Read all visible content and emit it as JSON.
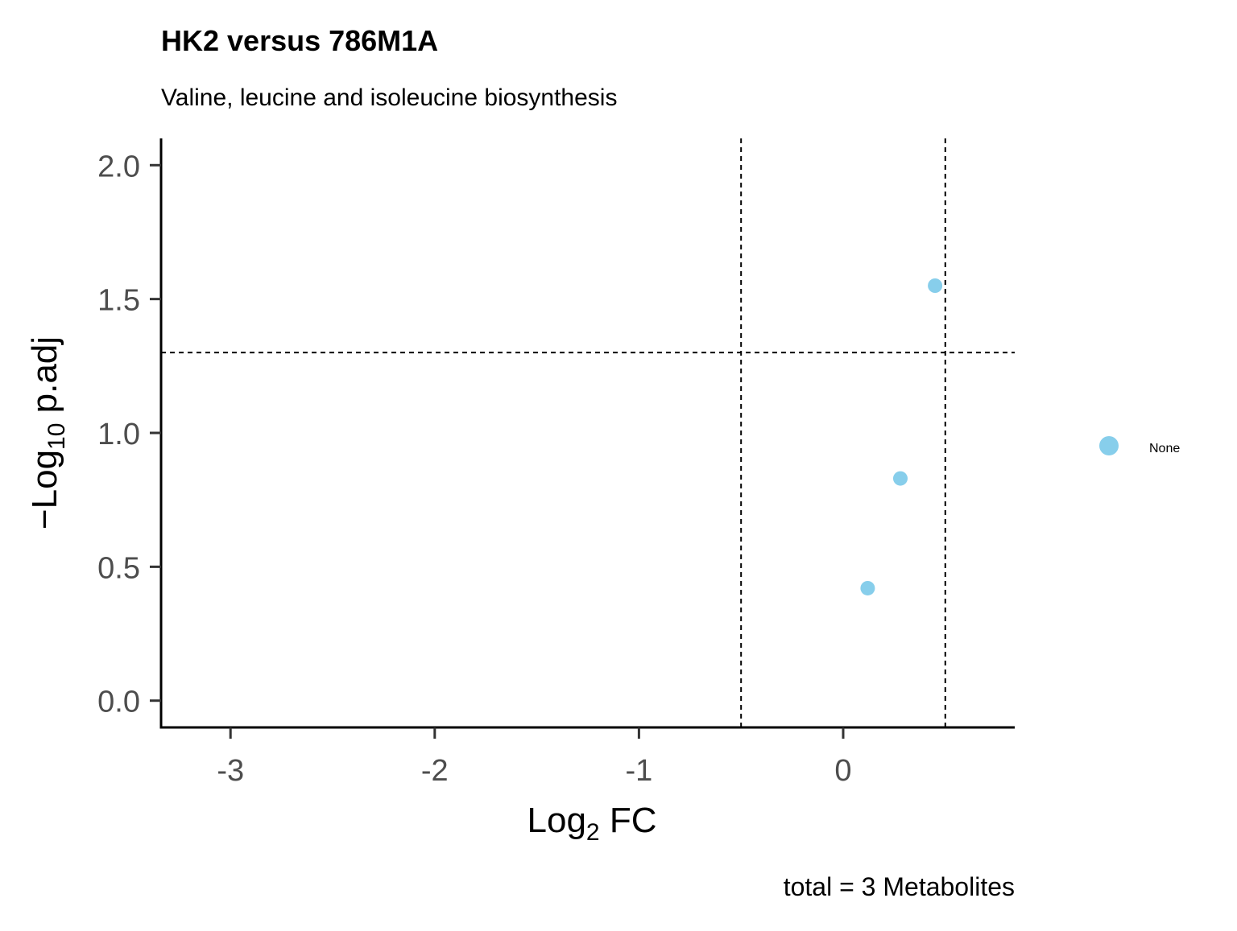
{
  "chart_data": {
    "type": "scatter",
    "title": "HK2 versus 786M1A",
    "subtitle": "Valine, leucine and isoleucine biosynthesis",
    "xlabel": {
      "main": "Log",
      "sub": "2",
      "rest": " FC"
    },
    "ylabel": {
      "prefix": "−",
      "main": "Log",
      "sub": "10",
      "rest": " p.adj"
    },
    "caption": "total = 3 Metabolites",
    "xlim": [
      -3.34,
      0.84
    ],
    "ylim": [
      -0.1,
      2.1
    ],
    "x_ticks": [
      {
        "value": -3,
        "label": "-3"
      },
      {
        "value": -2,
        "label": "-2"
      },
      {
        "value": -1,
        "label": "-1"
      },
      {
        "value": 0,
        "label": "0"
      }
    ],
    "y_ticks": [
      {
        "value": 0.0,
        "label": "0.0"
      },
      {
        "value": 0.5,
        "label": "0.5"
      },
      {
        "value": 1.0,
        "label": "1.0"
      },
      {
        "value": 1.5,
        "label": "1.5"
      },
      {
        "value": 2.0,
        "label": "2.0"
      }
    ],
    "reference_lines": {
      "vertical": [
        -0.5,
        0.5
      ],
      "horizontal": [
        1.3
      ]
    },
    "series": [
      {
        "name": "None",
        "color": "#87CEEB",
        "points": [
          {
            "x": 0.45,
            "y": 1.55
          },
          {
            "x": 0.28,
            "y": 0.83
          },
          {
            "x": 0.12,
            "y": 0.42
          }
        ]
      }
    ],
    "legend": {
      "position": "right",
      "items": [
        "None"
      ]
    },
    "grid": false
  }
}
